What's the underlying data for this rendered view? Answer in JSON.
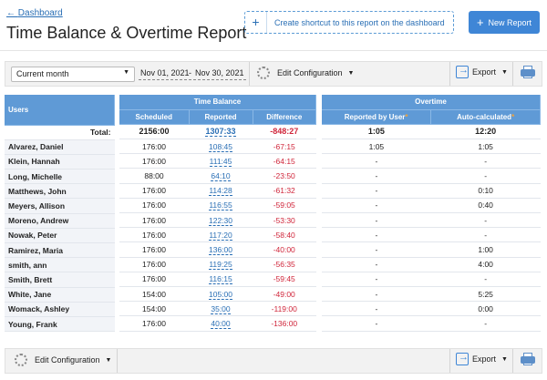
{
  "header": {
    "back_link": "Dashboard",
    "title": "Time Balance & Overtime Report",
    "shortcut_label": "Create shortcut to this report on the dashboard",
    "new_report_label": "New Report"
  },
  "toolbar": {
    "period": "Current month",
    "date_from": "Nov 01, 2021",
    "date_to": "Nov 30, 2021",
    "date_sep": "-",
    "edit_config": "Edit Configuration",
    "export": "Export"
  },
  "table": {
    "users_header": "Users",
    "time_balance_header": "Time Balance",
    "overtime_header": "Overtime",
    "columns": {
      "scheduled": "Scheduled",
      "reported": "Reported",
      "difference": "Difference",
      "reported_by_user": "Reported by User",
      "auto_calculated": "Auto-calculated"
    },
    "total": {
      "label": "Total:",
      "scheduled": "2156:00",
      "reported": "1307:33",
      "difference": "-848:27",
      "reported_by_user": "1:05",
      "auto_calculated": "12:20"
    },
    "rows": [
      {
        "name": "Alvarez, Daniel",
        "scheduled": "176:00",
        "reported": "108:45",
        "difference": "-67:15",
        "reported_by_user": "1:05",
        "auto_calculated": "1:05"
      },
      {
        "name": "Klein, Hannah",
        "scheduled": "176:00",
        "reported": "111:45",
        "difference": "-64:15",
        "reported_by_user": "-",
        "auto_calculated": "-"
      },
      {
        "name": "Long, Michelle",
        "scheduled": "88:00",
        "reported": "64:10",
        "difference": "-23:50",
        "reported_by_user": "-",
        "auto_calculated": "-"
      },
      {
        "name": "Matthews, John",
        "scheduled": "176:00",
        "reported": "114:28",
        "difference": "-61:32",
        "reported_by_user": "-",
        "auto_calculated": "0:10"
      },
      {
        "name": "Meyers, Allison",
        "scheduled": "176:00",
        "reported": "116:55",
        "difference": "-59:05",
        "reported_by_user": "-",
        "auto_calculated": "0:40"
      },
      {
        "name": "Moreno, Andrew",
        "scheduled": "176:00",
        "reported": "122:30",
        "difference": "-53:30",
        "reported_by_user": "-",
        "auto_calculated": "-"
      },
      {
        "name": "Nowak, Peter",
        "scheduled": "176:00",
        "reported": "117:20",
        "difference": "-58:40",
        "reported_by_user": "-",
        "auto_calculated": "-"
      },
      {
        "name": "Ramirez, Maria",
        "scheduled": "176:00",
        "reported": "136:00",
        "difference": "-40:00",
        "reported_by_user": "-",
        "auto_calculated": "1:00"
      },
      {
        "name": "smith, ann",
        "scheduled": "176:00",
        "reported": "119:25",
        "difference": "-56:35",
        "reported_by_user": "-",
        "auto_calculated": "4:00"
      },
      {
        "name": "Smith, Brett",
        "scheduled": "176:00",
        "reported": "116:15",
        "difference": "-59:45",
        "reported_by_user": "-",
        "auto_calculated": "-"
      },
      {
        "name": "White, Jane",
        "scheduled": "154:00",
        "reported": "105:00",
        "difference": "-49:00",
        "reported_by_user": "-",
        "auto_calculated": "5:25"
      },
      {
        "name": "Womack, Ashley",
        "scheduled": "154:00",
        "reported": "35:00",
        "difference": "-119:00",
        "reported_by_user": "-",
        "auto_calculated": "0:00"
      },
      {
        "name": "Young, Frank",
        "scheduled": "176:00",
        "reported": "40:00",
        "difference": "-136:00",
        "reported_by_user": "-",
        "auto_calculated": "-"
      }
    ]
  },
  "colors": {
    "accent": "#3f86d6",
    "header_blue": "#5f9ad6",
    "negative": "#d0263b",
    "link": "#2a6fb5"
  }
}
